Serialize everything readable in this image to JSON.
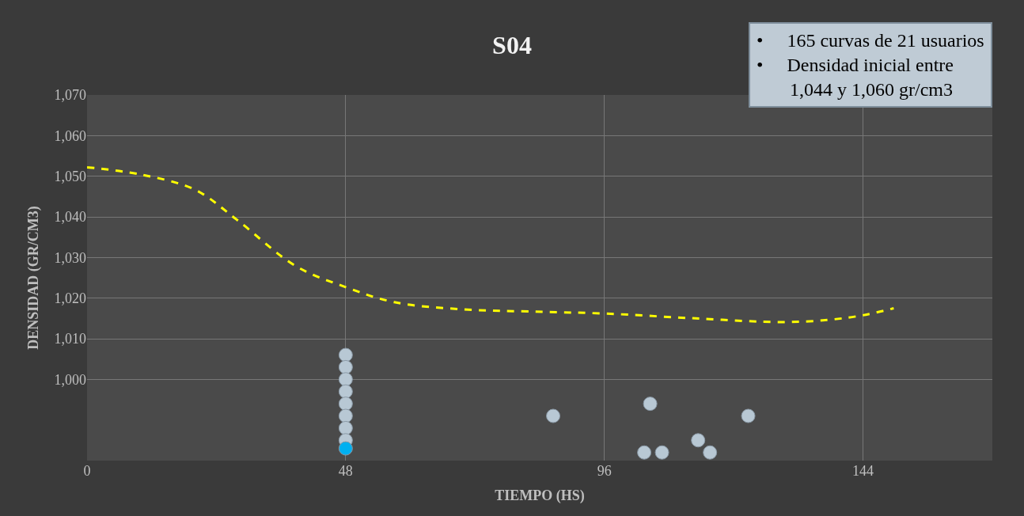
{
  "chart_data": {
    "type": "scatter",
    "title": "S04",
    "xlabel": "TIEMPO (HS)",
    "ylabel": "DENSIDAD (GR/CM3)",
    "annotations": [
      "•     165 curvas de 21 usuarios\n•     Densidad inicial entre\n       1,044 y 1,060 gr/cm3"
    ],
    "series": [
      {
        "type": "line",
        "color": "#ffff00",
        "line_style": "dashed",
        "marker": "none",
        "x": [
          0,
          10,
          20,
          27.7,
          38.6,
          48,
          57,
          70,
          82,
          96,
          113,
          129,
          138,
          144.5,
          149.7
        ],
        "values": [
          1052.2,
          1050.4,
          1046.7,
          1039.4,
          1028,
          1022.7,
          1019,
          1017.2,
          1016.7,
          1016.2,
          1015,
          1014.1,
          1014.7,
          1015.9,
          1017.5
        ]
      },
      {
        "color": "#b8c8d4",
        "marker": "circle",
        "x": [
          48,
          48,
          48,
          48,
          48,
          48,
          48,
          48,
          86.5,
          104.5,
          122.7,
          113.4,
          103.4,
          106.7,
          115.6
        ],
        "values": [
          1006,
          1003,
          1000,
          997,
          994,
          991,
          988,
          985,
          991,
          994,
          991,
          985,
          982,
          982,
          982
        ]
      },
      {
        "color": "#00b0f0",
        "marker": "circle",
        "x": [
          48
        ],
        "values": [
          983
        ]
      }
    ],
    "xlim": [
      0,
      168
    ],
    "xticks": [
      0,
      48,
      96,
      144
    ],
    "ylim": [
      980,
      1070
    ],
    "yticks": [
      {
        "value": 1000,
        "label": "1,000"
      },
      {
        "value": 1010,
        "label": "1,010"
      },
      {
        "value": 1020,
        "label": "1,020"
      },
      {
        "value": 1030,
        "label": "1,030"
      },
      {
        "value": 1040,
        "label": "1,040"
      },
      {
        "value": 1050,
        "label": "1,050"
      },
      {
        "value": 1060,
        "label": "1,060"
      },
      {
        "value": 1070,
        "label": "1,070"
      }
    ],
    "grid": true
  }
}
